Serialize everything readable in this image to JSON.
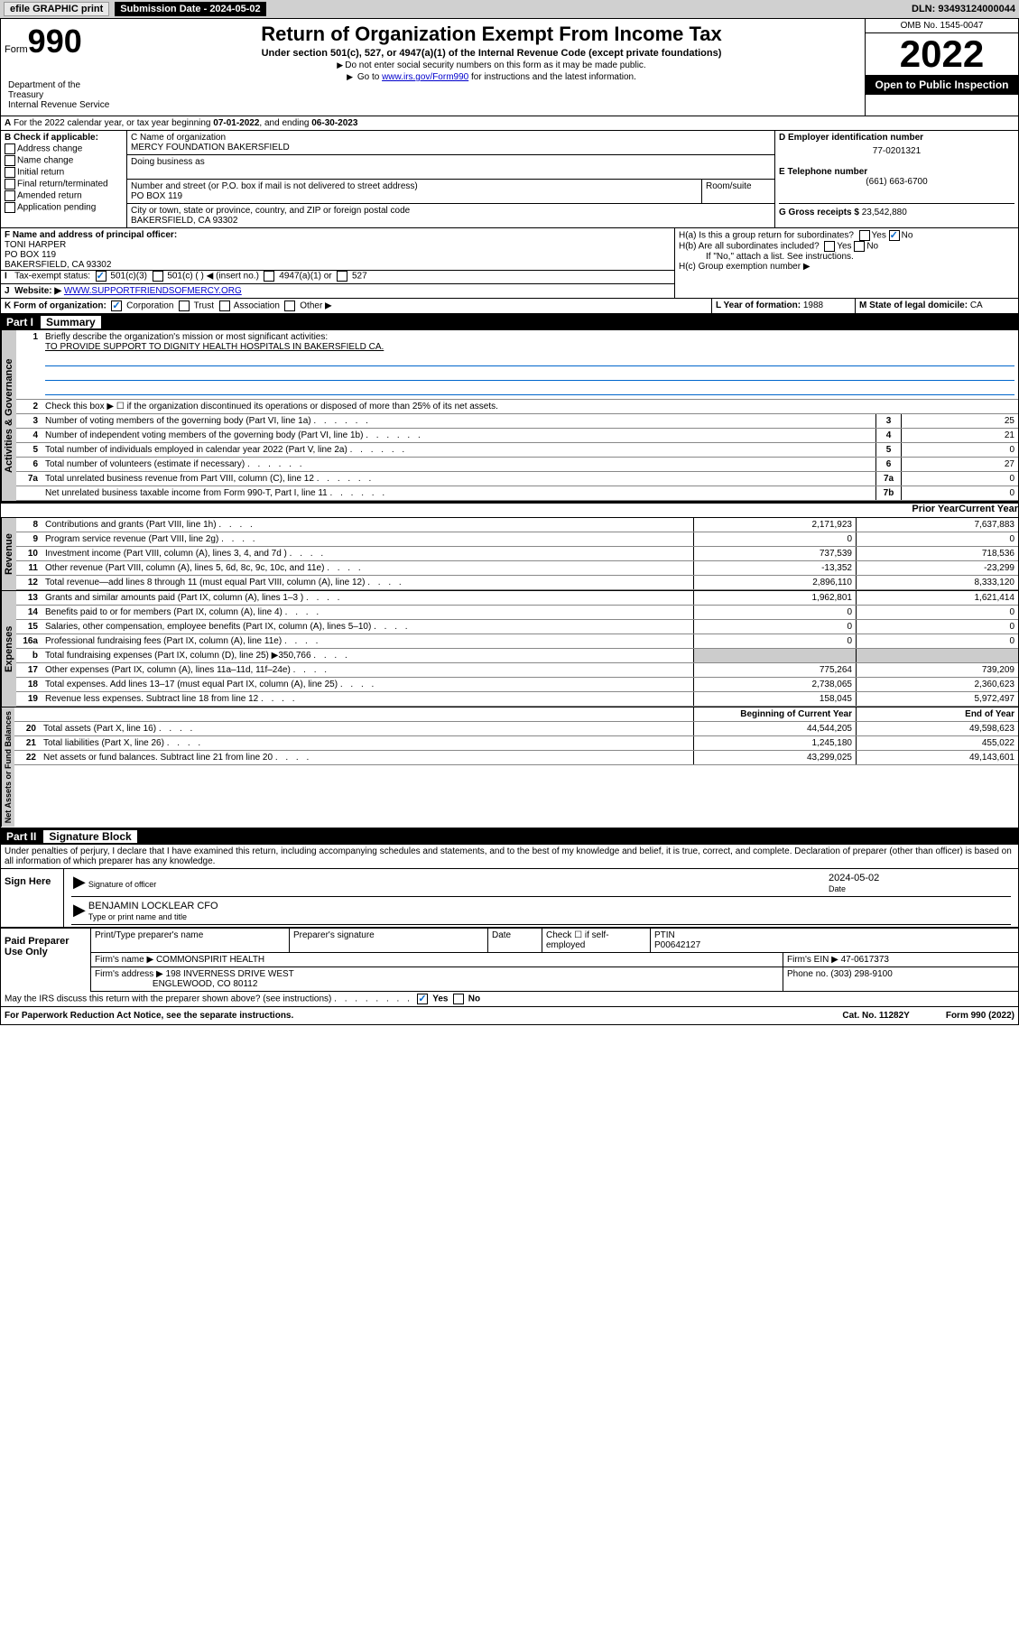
{
  "topbar": {
    "efile": "efile GRAPHIC print",
    "submission_label": "Submission Date - 2024-05-02",
    "dln": "DLN: 93493124000044"
  },
  "header": {
    "form_prefix": "Form",
    "form_num": "990",
    "title": "Return of Organization Exempt From Income Tax",
    "subtitle": "Under section 501(c), 527, or 4947(a)(1) of the Internal Revenue Code (except private foundations)",
    "note1": "Do not enter social security numbers on this form as it may be made public.",
    "note2_pre": "Go to ",
    "note2_link": "www.irs.gov/Form990",
    "note2_post": " for instructions and the latest information.",
    "omb": "OMB No. 1545-0047",
    "year": "2022",
    "otp": "Open to Public Inspection",
    "dept": "Department of the Treasury\nInternal Revenue Service"
  },
  "section_a": {
    "a_text": "For the 2022 calendar year, or tax year beginning ",
    "a_begin": "07-01-2022",
    "a_mid": ", and ending ",
    "a_end": "06-30-2023",
    "b_label": "B Check if applicable:",
    "b_opts": [
      "Address change",
      "Name change",
      "Initial return",
      "Final return/terminated",
      "Amended return",
      "Application pending"
    ],
    "c_label": "C Name of organization",
    "c_name": "MERCY FOUNDATION BAKERSFIELD",
    "dba_label": "Doing business as",
    "addr_label": "Number and street (or P.O. box if mail is not delivered to street address)",
    "room_label": "Room/suite",
    "addr": "PO BOX 119",
    "city_label": "City or town, state or province, country, and ZIP or foreign postal code",
    "city": "BAKERSFIELD, CA  93302",
    "d_label": "D Employer identification number",
    "d_ein": "77-0201321",
    "e_label": "E Telephone number",
    "e_phone": "(661) 663-6700",
    "g_label": "G Gross receipts $ ",
    "g_val": "23,542,880",
    "f_label": "F Name and address of principal officer:",
    "f_name": "TONI HARPER",
    "f_addr1": "PO BOX 119",
    "f_addr2": "BAKERSFIELD, CA  93302",
    "ha_label": "H(a)  Is this a group return for subordinates?",
    "hb_label": "H(b)  Are all subordinates included?",
    "hb_note": "If \"No,\" attach a list. See instructions.",
    "hc_label": "H(c)  Group exemption number ▶",
    "i_label": "Tax-exempt status:",
    "i_501c3": "501(c)(3)",
    "i_501c": "501(c) (  ) ◀ (insert no.)",
    "i_4947": "4947(a)(1) or",
    "i_527": "527",
    "j_label": "Website: ▶",
    "j_site": "WWW.SUPPORTFRIENDSOFMERCY.ORG",
    "k_label": "K Form of organization:",
    "k_opts": [
      "Corporation",
      "Trust",
      "Association",
      "Other ▶"
    ],
    "l_label": "L Year of formation: ",
    "l_val": "1988",
    "m_label": "M State of legal domicile: ",
    "m_val": "CA"
  },
  "part1": {
    "title": "Part I",
    "name": "Summary",
    "line1_label": "Briefly describe the organization's mission or most significant activities:",
    "line1_text": "TO PROVIDE SUPPORT TO DIGNITY HEALTH HOSPITALS IN BAKERSFIELD CA.",
    "line2": "Check this box ▶ ☐ if the organization discontinued its operations or disposed of more than 25% of its net assets.",
    "rows_gov": [
      {
        "n": "3",
        "d": "Number of voting members of the governing body (Part VI, line 1a)",
        "box": "3",
        "v": "25"
      },
      {
        "n": "4",
        "d": "Number of independent voting members of the governing body (Part VI, line 1b)",
        "box": "4",
        "v": "21"
      },
      {
        "n": "5",
        "d": "Total number of individuals employed in calendar year 2022 (Part V, line 2a)",
        "box": "5",
        "v": "0"
      },
      {
        "n": "6",
        "d": "Total number of volunteers (estimate if necessary)",
        "box": "6",
        "v": "27"
      },
      {
        "n": "7a",
        "d": "Total unrelated business revenue from Part VIII, column (C), line 12",
        "box": "7a",
        "v": "0"
      },
      {
        "n": "",
        "d": "Net unrelated business taxable income from Form 990-T, Part I, line 11",
        "box": "7b",
        "v": "0"
      }
    ],
    "col_prior": "Prior Year",
    "col_current": "Current Year",
    "rows_rev": [
      {
        "n": "8",
        "d": "Contributions and grants (Part VIII, line 1h)",
        "p": "2,171,923",
        "c": "7,637,883"
      },
      {
        "n": "9",
        "d": "Program service revenue (Part VIII, line 2g)",
        "p": "0",
        "c": "0"
      },
      {
        "n": "10",
        "d": "Investment income (Part VIII, column (A), lines 3, 4, and 7d )",
        "p": "737,539",
        "c": "718,536"
      },
      {
        "n": "11",
        "d": "Other revenue (Part VIII, column (A), lines 5, 6d, 8c, 9c, 10c, and 11e)",
        "p": "-13,352",
        "c": "-23,299"
      },
      {
        "n": "12",
        "d": "Total revenue—add lines 8 through 11 (must equal Part VIII, column (A), line 12)",
        "p": "2,896,110",
        "c": "8,333,120"
      }
    ],
    "rows_exp": [
      {
        "n": "13",
        "d": "Grants and similar amounts paid (Part IX, column (A), lines 1–3 )",
        "p": "1,962,801",
        "c": "1,621,414"
      },
      {
        "n": "14",
        "d": "Benefits paid to or for members (Part IX, column (A), line 4)",
        "p": "0",
        "c": "0"
      },
      {
        "n": "15",
        "d": "Salaries, other compensation, employee benefits (Part IX, column (A), lines 5–10)",
        "p": "0",
        "c": "0"
      },
      {
        "n": "16a",
        "d": "Professional fundraising fees (Part IX, column (A), line 11e)",
        "p": "0",
        "c": "0"
      },
      {
        "n": "b",
        "d": "Total fundraising expenses (Part IX, column (D), line 25) ▶350,766",
        "p": "",
        "c": "",
        "grey": true
      },
      {
        "n": "17",
        "d": "Other expenses (Part IX, column (A), lines 11a–11d, 11f–24e)",
        "p": "775,264",
        "c": "739,209"
      },
      {
        "n": "18",
        "d": "Total expenses. Add lines 13–17 (must equal Part IX, column (A), line 25)",
        "p": "2,738,065",
        "c": "2,360,623"
      },
      {
        "n": "19",
        "d": "Revenue less expenses. Subtract line 18 from line 12",
        "p": "158,045",
        "c": "5,972,497"
      }
    ],
    "col_begin": "Beginning of Current Year",
    "col_end": "End of Year",
    "rows_net": [
      {
        "n": "20",
        "d": "Total assets (Part X, line 16)",
        "p": "44,544,205",
        "c": "49,598,623"
      },
      {
        "n": "21",
        "d": "Total liabilities (Part X, line 26)",
        "p": "1,245,180",
        "c": "455,022"
      },
      {
        "n": "22",
        "d": "Net assets or fund balances. Subtract line 21 from line 20",
        "p": "43,299,025",
        "c": "49,143,601"
      }
    ],
    "tab_gov": "Activities & Governance",
    "tab_rev": "Revenue",
    "tab_exp": "Expenses",
    "tab_net": "Net Assets or Fund Balances"
  },
  "part2": {
    "title": "Part II",
    "name": "Signature Block",
    "decl": "Under penalties of perjury, I declare that I have examined this return, including accompanying schedules and statements, and to the best of my knowledge and belief, it is true, correct, and complete. Declaration of preparer (other than officer) is based on all information of which preparer has any knowledge.",
    "sign_here": "Sign Here",
    "sig_officer": "Signature of officer",
    "sig_date": "2024-05-02",
    "date_label": "Date",
    "officer_name": "BENJAMIN LOCKLEAR CFO",
    "officer_label": "Type or print name and title",
    "paid": "Paid Preparer Use Only",
    "prep_name_label": "Print/Type preparer's name",
    "prep_sig_label": "Preparer's signature",
    "prep_date_label": "Date",
    "prep_check_label": "Check ☐ if self-employed",
    "ptin_label": "PTIN",
    "ptin": "P00642127",
    "firm_name_label": "Firm's name     ▶",
    "firm_name": "COMMONSPIRIT HEALTH",
    "firm_ein_label": "Firm's EIN ▶",
    "firm_ein": "47-0617373",
    "firm_addr_label": "Firm's address ▶",
    "firm_addr1": "198 INVERNESS DRIVE WEST",
    "firm_addr2": "ENGLEWOOD, CO  80112",
    "phone_label": "Phone no. ",
    "phone": "(303) 298-9100",
    "may_irs": "May the IRS discuss this return with the preparer shown above? (see instructions)"
  },
  "footer": {
    "left": "For Paperwork Reduction Act Notice, see the separate instructions.",
    "mid": "Cat. No. 11282Y",
    "right": "Form 990 (2022)"
  },
  "colors": {
    "link": "#0000cc",
    "check": "#0066cc"
  }
}
